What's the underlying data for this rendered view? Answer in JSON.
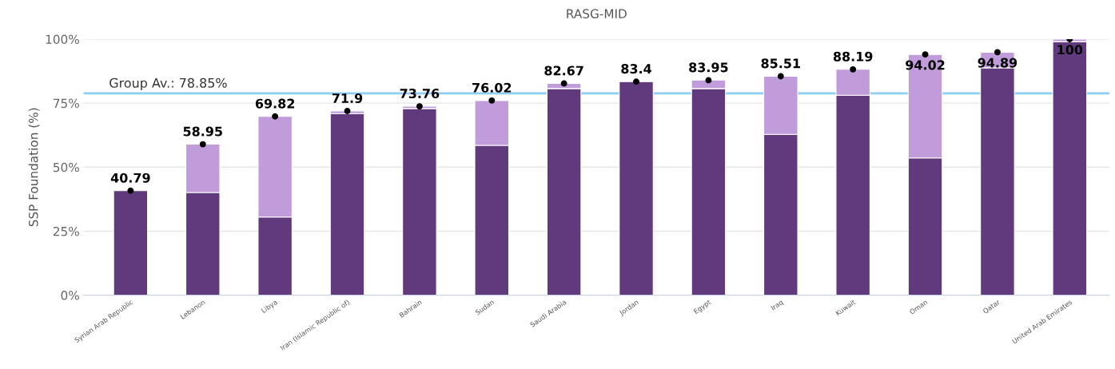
{
  "chart_data": {
    "type": "bar",
    "title": "RASG-MID",
    "ylabel": "SSP Foundation (%)",
    "categories": [
      "Syrian Arab Republic",
      "Lebanon",
      "Libya",
      "Iran (Islamic Republic of)",
      "Bahrain",
      "Sudan",
      "Saudi Arabia",
      "Jordan",
      "Egypt",
      "Iraq",
      "Kuwait",
      "Oman",
      "Qatar",
      "United Arab Emirates"
    ],
    "stacked": true,
    "series": [
      {
        "color": "#603a7d",
        "values": [
          40.8,
          40.1,
          30.5,
          70.9,
          72.9,
          58.5,
          80.7,
          83.4,
          80.7,
          62.8,
          78.1,
          53.6,
          88.8,
          99.0
        ]
      },
      {
        "color": "#c09cdb",
        "values": [
          null,
          18.9,
          39.3,
          1.0,
          0.9,
          17.5,
          2.0,
          null,
          3.3,
          22.7,
          10.1,
          40.4,
          6.1,
          1.0
        ]
      },
      {
        "type": "scatter",
        "color": "#000000",
        "data_labels": true,
        "values": [
          40.79,
          58.95,
          69.82,
          71.9,
          73.76,
          76.02,
          82.67,
          83.4,
          83.95,
          85.51,
          88.19,
          94.02,
          94.89,
          100
        ]
      }
    ],
    "ylim": [
      0,
      100
    ],
    "yticks": [
      {
        "value": 0,
        "label": "0%"
      },
      {
        "value": 25,
        "label": "25%"
      },
      {
        "value": 50,
        "label": "50%"
      },
      {
        "value": 75,
        "label": "75%"
      },
      {
        "value": 100,
        "label": "100%"
      }
    ],
    "grid": "y",
    "ref_lines": [
      {
        "axis": "y",
        "value": 78.85,
        "label": "Group Av.: 78.85%",
        "color": "#8ecdf5"
      }
    ]
  }
}
